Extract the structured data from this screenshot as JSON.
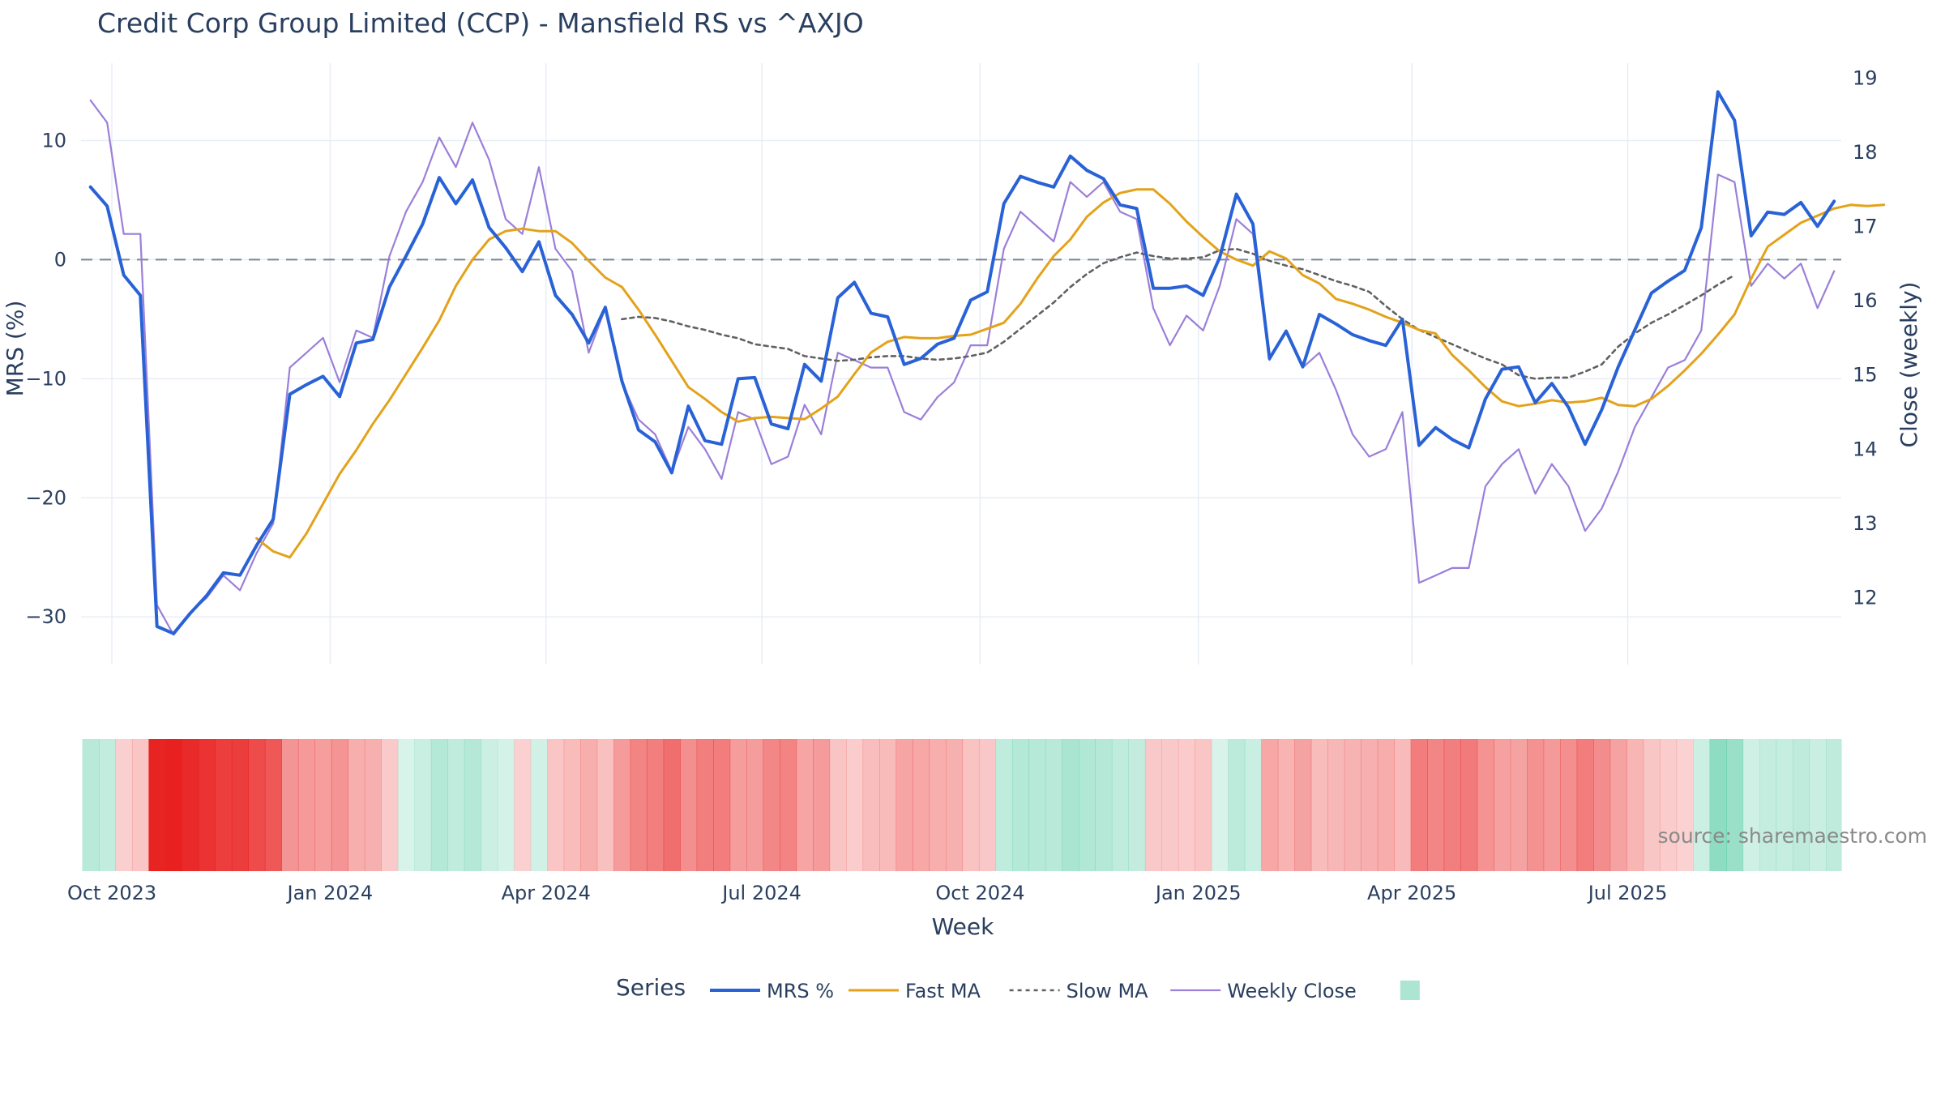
{
  "title": "Credit Corp Group Limited (CCP) - Mansfield RS vs ^AXJO",
  "source": "source: sharemaestro.com",
  "colors": {
    "mrs": "#2962d6",
    "fast": "#e3a21a",
    "slow": "#616161",
    "close": "#9b7fd9",
    "zero": "#7a8494",
    "grid": "#e8edf5",
    "positive": "#2fbf8f",
    "negative": "#e8201f"
  },
  "chart_data": {
    "type": "line",
    "xlabel": "Week",
    "ylabel_left": "MRS (%)",
    "ylabel_right": "Close (weekly)",
    "ylim_left": [
      -34,
      16.5
    ],
    "ylim_right": [
      11.1,
      19.2
    ],
    "yticks_left": [
      10,
      0,
      -10,
      -20,
      -30
    ],
    "yticks_left_labels": [
      "10",
      "0",
      "−10",
      "−20",
      "−30"
    ],
    "yticks_right": [
      19,
      18,
      17,
      16,
      15,
      14,
      13,
      12
    ],
    "xlim": [
      "2023-09-18",
      "2025-09-29"
    ],
    "xticks": [
      {
        "date": "2023-10-01",
        "label": "Oct 2023"
      },
      {
        "date": "2024-01-01",
        "label": "Jan 2024"
      },
      {
        "date": "2024-04-01",
        "label": "Apr 2024"
      },
      {
        "date": "2024-07-01",
        "label": "Jul 2024"
      },
      {
        "date": "2024-10-01",
        "label": "Oct 2024"
      },
      {
        "date": "2025-01-01",
        "label": "Jan 2025"
      },
      {
        "date": "2025-04-01",
        "label": "Apr 2025"
      },
      {
        "date": "2025-07-01",
        "label": "Jul 2025"
      }
    ],
    "legend_title": "Series",
    "legend_position": "bottom",
    "grid": true,
    "series": [
      {
        "name": "MRS %",
        "axis": "left",
        "start": "2023-09-22",
        "step_days": 7,
        "values": [
          6.1,
          4.5,
          -1.3,
          -3,
          -30.8,
          -31.4,
          -29.7,
          -28.2,
          -26.3,
          -26.5,
          -24,
          -21.8,
          -11.3,
          -10.5,
          -9.8,
          -11.5,
          -7,
          -6.7,
          -2.3,
          0.3,
          3,
          6.9,
          4.7,
          6.7,
          2.7,
          1,
          -1,
          1.5,
          -3,
          -4.6,
          -7,
          -4,
          -10.2,
          -14.3,
          -15.3,
          -17.9,
          -12.3,
          -15.2,
          -15.5,
          -10,
          -9.9,
          -13.8,
          -14.2,
          -8.8,
          -10.2,
          -3.2,
          -1.9,
          -4.5,
          -4.8,
          -8.8,
          -8.3,
          -7.1,
          -6.6,
          -3.4,
          -2.7,
          4.7,
          7,
          6.5,
          6.1,
          8.7,
          7.5,
          6.8,
          4.6,
          4.3,
          -2.4,
          -2.4,
          -2.2,
          -3,
          0.2,
          5.5,
          3,
          -8.3,
          -6,
          -9,
          -4.6,
          -5.4,
          -6.3,
          -6.8,
          -7.2,
          -5,
          -15.6,
          -14.1,
          -15.1,
          -15.8,
          -11.7,
          -9.2,
          -9,
          -12,
          -10.4,
          -12.4,
          -15.5,
          -12.6,
          -9,
          -5.9,
          -2.8,
          -1.8,
          -0.9,
          2.7,
          14.1,
          11.7,
          2,
          4,
          3.8,
          4.8,
          2.8,
          4.9
        ]
      },
      {
        "name": "Fast MA",
        "axis": "left",
        "start": "2023-12-01",
        "step_days": 7,
        "values": [
          -23.4,
          -24.5,
          -25,
          -23,
          -20.5,
          -18,
          -16,
          -13.8,
          -11.8,
          -9.6,
          -7.4,
          -5.1,
          -2.2,
          0,
          1.7,
          2.4,
          2.6,
          2.4,
          2.4,
          1.4,
          -0.1,
          -1.5,
          -2.3,
          -4.2,
          -6.3,
          -8.5,
          -10.7,
          -11.7,
          -12.8,
          -13.6,
          -13.3,
          -13.2,
          -13.3,
          -13.4,
          -12.5,
          -11.5,
          -9.6,
          -7.8,
          -6.9,
          -6.5,
          -6.6,
          -6.6,
          -6.4,
          -6.3,
          -5.8,
          -5.3,
          -3.7,
          -1.6,
          0.3,
          1.7,
          3.6,
          4.8,
          5.6,
          5.9,
          5.9,
          4.7,
          3.2,
          1.9,
          0.7,
          0,
          -0.5,
          0.7,
          0.1,
          -1.3,
          -2,
          -3.3,
          -3.7,
          -4.2,
          -4.8,
          -5.3,
          -5.9,
          -6.2,
          -8,
          -9.3,
          -10.7,
          -11.9,
          -12.3,
          -12.1,
          -11.8,
          -12,
          -11.9,
          -11.6,
          -12.2,
          -12.3,
          -11.7,
          -10.6,
          -9.3,
          -7.9,
          -6.3,
          -4.6,
          -1.6,
          1.1,
          2.1,
          3.1,
          3.7,
          4.3,
          4.6,
          4.5,
          4.6
        ]
      },
      {
        "name": "Slow MA",
        "axis": "left",
        "start": "2024-05-03",
        "step_days": 7,
        "values": [
          -5,
          -4.8,
          -4.9,
          -5.2,
          -5.6,
          -5.9,
          -6.3,
          -6.6,
          -7.1,
          -7.3,
          -7.5,
          -8.1,
          -8.3,
          -8.5,
          -8.4,
          -8.2,
          -8.1,
          -8.1,
          -8.3,
          -8.4,
          -8.3,
          -8.1,
          -7.8,
          -6.9,
          -5.8,
          -4.7,
          -3.6,
          -2.3,
          -1.2,
          -0.3,
          0.2,
          0.6,
          0.3,
          0.1,
          0.1,
          0.2,
          0.8,
          0.9,
          0.5,
          -0.1,
          -0.5,
          -0.8,
          -1.3,
          -1.8,
          -2.2,
          -2.7,
          -3.9,
          -5,
          -5.9,
          -6.5,
          -7.1,
          -7.7,
          -8.3,
          -8.8,
          -9.7,
          -10,
          -9.9,
          -9.9,
          -9.4,
          -8.8,
          -7.3,
          -6.2,
          -5.3,
          -4.6,
          -3.8,
          -3,
          -2.1,
          -1.3
        ]
      },
      {
        "name": "Weekly Close",
        "axis": "right",
        "start": "2023-09-22",
        "step_days": 7,
        "values": [
          18.7,
          18.4,
          16.9,
          16.9,
          11.9,
          11.5,
          11.8,
          12,
          12.3,
          12.1,
          12.6,
          13,
          15.1,
          15.3,
          15.5,
          14.9,
          15.6,
          15.5,
          16.6,
          17.2,
          17.6,
          18.2,
          17.8,
          18.4,
          17.9,
          17.1,
          16.9,
          17.8,
          16.7,
          16.4,
          15.3,
          15.9,
          14.9,
          14.4,
          14.2,
          13.7,
          14.3,
          14,
          13.6,
          14.5,
          14.4,
          13.8,
          13.9,
          14.6,
          14.2,
          15.3,
          15.2,
          15.1,
          15.1,
          14.5,
          14.4,
          14.7,
          14.9,
          15.4,
          15.4,
          16.7,
          17.2,
          17,
          16.8,
          17.6,
          17.4,
          17.6,
          17.2,
          17.1,
          15.9,
          15.4,
          15.8,
          15.6,
          16.2,
          17.1,
          16.9,
          15.2,
          15.6,
          15.1,
          15.3,
          14.8,
          14.2,
          13.9,
          14,
          14.5,
          12.2,
          12.3,
          12.4,
          12.4,
          13.5,
          13.8,
          14,
          13.4,
          13.8,
          13.5,
          12.9,
          13.2,
          13.7,
          14.3,
          14.7,
          15.1,
          15.2,
          15.6,
          17.7,
          17.6,
          16.2,
          16.5,
          16.3,
          16.5,
          15.9,
          16.4
        ]
      }
    ],
    "heatmap": {
      "start": "2023-09-22",
      "step_days": 7,
      "description": "Mansfield RS value mapped to red (negative) / green (positive) intensity",
      "values": [
        6.1,
        4.5,
        -1.3,
        -3,
        -30.8,
        -31.4,
        -29.7,
        -28.2,
        -26.3,
        -26.5,
        -24,
        -21.8,
        -11.3,
        -10.5,
        -9.8,
        -11.5,
        -7,
        -6.7,
        -2.3,
        0.3,
        3,
        6.9,
        4.7,
        6.7,
        2.7,
        1,
        -1,
        1.5,
        -3,
        -4.6,
        -7,
        -4,
        -10.2,
        -14.3,
        -15.3,
        -17.9,
        -12.3,
        -15.2,
        -15.5,
        -10,
        -9.9,
        -13.8,
        -14.2,
        -8.8,
        -10.2,
        -3.2,
        -1.9,
        -4.5,
        -4.8,
        -8.8,
        -8.3,
        -7.1,
        -6.6,
        -3.4,
        -2.7,
        4.7,
        7,
        6.5,
        6.1,
        8.7,
        7.5,
        6.8,
        4.6,
        4.3,
        -2.4,
        -2.4,
        -2.2,
        -3,
        0.2,
        5.5,
        3,
        -8.3,
        -6,
        -9,
        -4.6,
        -5.4,
        -6.3,
        -6.8,
        -7.2,
        -5,
        -15.6,
        -14.1,
        -15.1,
        -15.8,
        -11.7,
        -9.2,
        -9,
        -12,
        -10.4,
        -12.4,
        -15.5,
        -12.6,
        -9,
        -5.9,
        -2.8,
        -1.8,
        -0.9,
        2.7,
        14.1,
        11.7,
        2,
        4,
        3.8,
        4.8,
        2.8,
        4.9
      ]
    }
  }
}
